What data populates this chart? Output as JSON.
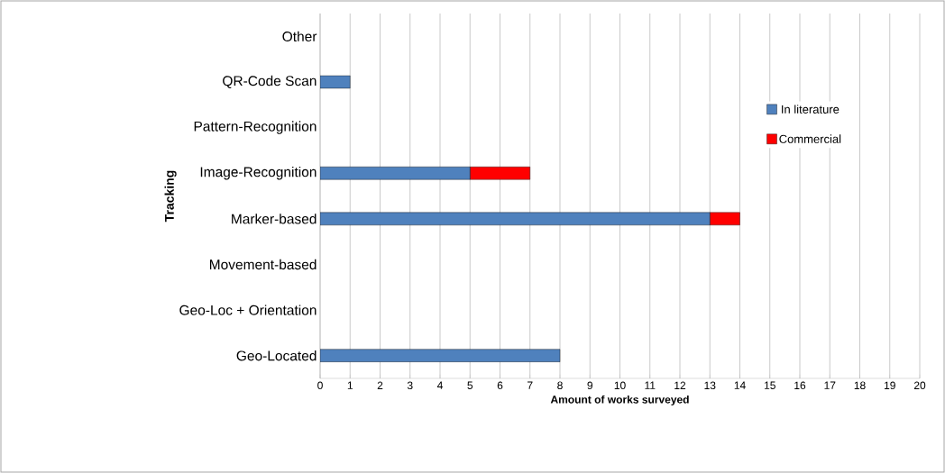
{
  "chart_data": {
    "type": "bar",
    "orientation": "horizontal",
    "stacked": true,
    "ylabel": "Tracking",
    "xlabel": "Amount of works surveyed",
    "categories": [
      "Other",
      "QR-Code Scan",
      "Pattern-Recognition",
      "Image-Recognition",
      "Marker-based",
      "Movement-based",
      "Geo-Loc + Orientation",
      "Geo-Located"
    ],
    "series": [
      {
        "name": "In literature",
        "color": "#4f81bd",
        "values": [
          0,
          1,
          0,
          5,
          13,
          0,
          0,
          8
        ]
      },
      {
        "name": "Commercial",
        "color": "#ff0000",
        "values": [
          0,
          0,
          0,
          2,
          1,
          0,
          0,
          0
        ]
      }
    ],
    "xlim": [
      0,
      20
    ],
    "xticks": [
      0,
      1,
      2,
      3,
      4,
      5,
      6,
      7,
      8,
      9,
      10,
      11,
      12,
      13,
      14,
      15,
      16,
      17,
      18,
      19,
      20
    ],
    "grid": "x",
    "legend": "right"
  }
}
